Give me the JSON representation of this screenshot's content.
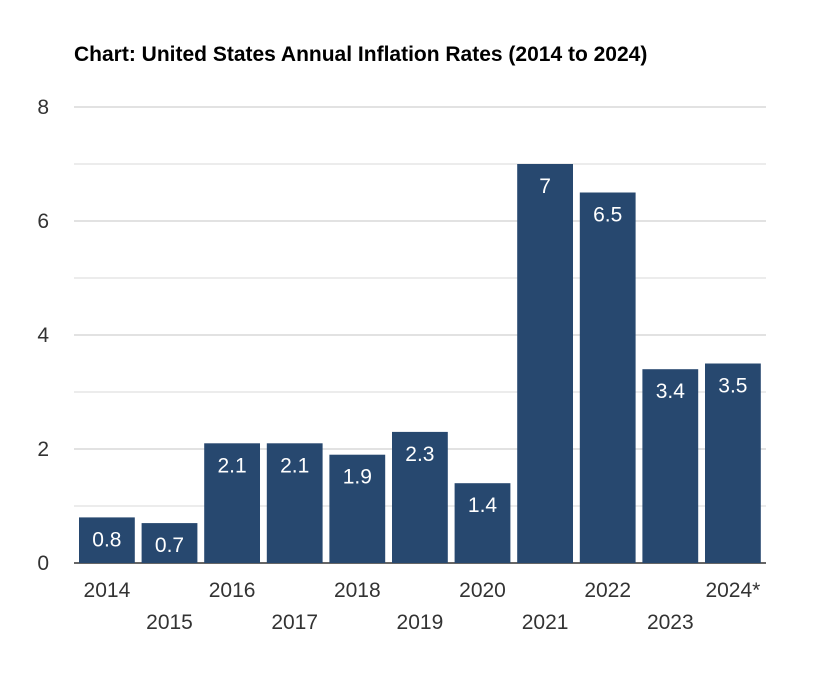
{
  "colors": {
    "bar": "#27486F",
    "grid": "#d9d9d9",
    "axis": "#333333",
    "text": "#333333"
  },
  "chart_data": {
    "type": "bar",
    "title": "Chart: United States Annual Inflation Rates (2014 to 2024)",
    "xlabel": "",
    "ylabel": "",
    "categories": [
      "2014",
      "2015",
      "2016",
      "2017",
      "2018",
      "2019",
      "2020",
      "2021",
      "2022",
      "2023",
      "2024*"
    ],
    "values": [
      0.8,
      0.7,
      2.1,
      2.1,
      1.9,
      2.3,
      1.4,
      7,
      6.5,
      3.4,
      3.5
    ],
    "ylim": [
      0,
      8
    ],
    "yticks": [
      0,
      2,
      4,
      6,
      8
    ],
    "grid": true,
    "legend": "none"
  }
}
